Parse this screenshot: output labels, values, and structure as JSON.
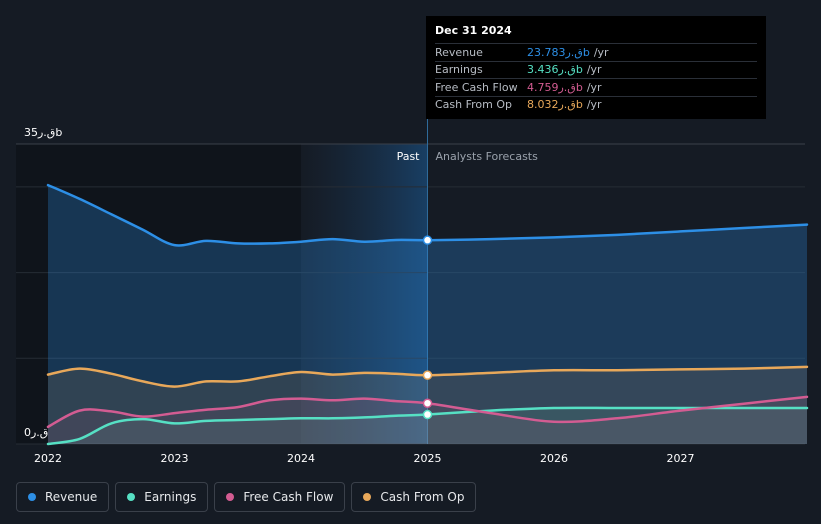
{
  "chart_data": {
    "type": "line",
    "currency_symbol": "ق.ر",
    "y_ticks": [
      {
        "value": 35,
        "label": "35ق.رb"
      },
      {
        "value": 0,
        "label": "0ق.ر"
      }
    ],
    "ylim": [
      0,
      35
    ],
    "x_ticks": [
      {
        "value": 2022,
        "label": "2022"
      },
      {
        "value": 2023,
        "label": "2023"
      },
      {
        "value": 2024,
        "label": "2024"
      },
      {
        "value": 2025,
        "label": "2025"
      },
      {
        "value": 2026,
        "label": "2026"
      },
      {
        "value": 2027,
        "label": "2027"
      }
    ],
    "xlim": [
      2022,
      2028
    ],
    "divider_x": 2025,
    "past_label": "Past",
    "forecast_label": "Analysts Forecasts",
    "series": [
      {
        "name": "Revenue",
        "color": "#2d8fe6",
        "x": [
          2022.0,
          2022.25,
          2022.5,
          2022.75,
          2023.0,
          2023.25,
          2023.5,
          2023.75,
          2024.0,
          2024.25,
          2024.5,
          2024.75,
          2025.0,
          2025.5,
          2026.0,
          2026.5,
          2027.0,
          2027.5,
          2028.0
        ],
        "y": [
          30.2,
          28.6,
          26.8,
          25.0,
          23.2,
          23.7,
          23.4,
          23.4,
          23.6,
          23.9,
          23.6,
          23.8,
          23.78,
          23.9,
          24.1,
          24.4,
          24.8,
          25.2,
          25.6
        ]
      },
      {
        "name": "Earnings",
        "color": "#56e0c4",
        "x": [
          2022.0,
          2022.25,
          2022.5,
          2022.75,
          2023.0,
          2023.25,
          2023.5,
          2023.75,
          2024.0,
          2024.25,
          2024.5,
          2024.75,
          2025.0,
          2025.5,
          2026.0,
          2026.5,
          2027.0,
          2027.5,
          2028.0
        ],
        "y": [
          0.0,
          0.6,
          2.4,
          2.9,
          2.4,
          2.7,
          2.8,
          2.9,
          3.0,
          3.0,
          3.1,
          3.3,
          3.436,
          3.9,
          4.2,
          4.2,
          4.2,
          4.2,
          4.2
        ]
      },
      {
        "name": "Free Cash Flow",
        "color": "#d35c92",
        "x": [
          2022.0,
          2022.25,
          2022.5,
          2022.75,
          2023.0,
          2023.25,
          2023.5,
          2023.75,
          2024.0,
          2024.25,
          2024.5,
          2024.75,
          2025.0,
          2025.5,
          2026.0,
          2026.5,
          2027.0,
          2027.5,
          2028.0
        ],
        "y": [
          2.0,
          3.9,
          3.8,
          3.2,
          3.6,
          4.0,
          4.3,
          5.1,
          5.3,
          5.1,
          5.3,
          5.0,
          4.759,
          3.6,
          2.6,
          3.0,
          3.9,
          4.7,
          5.5
        ]
      },
      {
        "name": "Cash From Op",
        "color": "#e8a85a",
        "x": [
          2022.0,
          2022.25,
          2022.5,
          2022.75,
          2023.0,
          2023.25,
          2023.5,
          2023.75,
          2024.0,
          2024.25,
          2024.5,
          2024.75,
          2025.0,
          2025.5,
          2026.0,
          2026.5,
          2027.0,
          2027.5,
          2028.0
        ],
        "y": [
          8.1,
          8.8,
          8.2,
          7.3,
          6.7,
          7.3,
          7.3,
          7.9,
          8.4,
          8.1,
          8.3,
          8.2,
          8.032,
          8.3,
          8.6,
          8.6,
          8.7,
          8.8,
          9.0
        ]
      }
    ]
  },
  "tooltip": {
    "date": "Dec 31 2024",
    "unit": "/yr",
    "rows": [
      {
        "label": "Revenue",
        "value": "23.783ق.رb",
        "color": "#2d8fe6"
      },
      {
        "label": "Earnings",
        "value": "3.436ق.رb",
        "color": "#56e0c4"
      },
      {
        "label": "Free Cash Flow",
        "value": "4.759ق.رb",
        "color": "#d35c92"
      },
      {
        "label": "Cash From Op",
        "value": "8.032ق.رb",
        "color": "#e8a85a"
      }
    ]
  },
  "legend": [
    {
      "label": "Revenue",
      "color": "#2d8fe6"
    },
    {
      "label": "Earnings",
      "color": "#56e0c4"
    },
    {
      "label": "Free Cash Flow",
      "color": "#d35c92"
    },
    {
      "label": "Cash From Op",
      "color": "#e8a85a"
    }
  ]
}
